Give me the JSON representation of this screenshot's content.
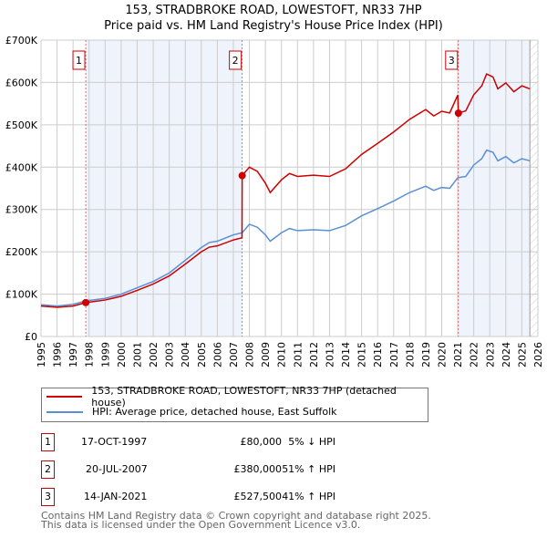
{
  "chart_data": {
    "type": "line",
    "title": "153, STRADBROKE ROAD, LOWESTOFT, NR33 7HP",
    "subtitle": "Price paid vs. HM Land Registry's House Price Index (HPI)",
    "xlim": [
      1995,
      2026
    ],
    "ylim": [
      0,
      700000
    ],
    "x_ticks": [
      "1995",
      "1996",
      "1997",
      "1998",
      "1999",
      "2000",
      "2001",
      "2002",
      "2003",
      "2004",
      "2005",
      "2006",
      "2007",
      "2008",
      "2009",
      "2010",
      "2011",
      "2012",
      "2013",
      "2014",
      "2015",
      "2016",
      "2017",
      "2018",
      "2019",
      "2020",
      "2021",
      "2022",
      "2023",
      "2024",
      "2025",
      "2026"
    ],
    "y_ticks": [
      {
        "v": 0,
        "label": "£0"
      },
      {
        "v": 100000,
        "label": "£100K"
      },
      {
        "v": 200000,
        "label": "£200K"
      },
      {
        "v": 300000,
        "label": "£300K"
      },
      {
        "v": 400000,
        "label": "£400K"
      },
      {
        "v": 500000,
        "label": "£500K"
      },
      {
        "v": 600000,
        "label": "£600K"
      },
      {
        "v": 700000,
        "label": "£700K"
      }
    ],
    "grid": true,
    "series": [
      {
        "name": "153, STRADBROKE ROAD, LOWESTOFT, NR33 7HP (detached house)",
        "color": "#cc0000",
        "x": [
          1995,
          1996,
          1997,
          1997.8,
          1998,
          1999,
          2000,
          2001,
          2002,
          2003,
          2004,
          2005,
          2005.5,
          2006,
          2007,
          2007.54,
          2007.55,
          2008,
          2008.5,
          2009,
          2009.3,
          2010,
          2010.5,
          2011,
          2012,
          2013,
          2014,
          2015,
          2016,
          2017,
          2018,
          2019,
          2019.5,
          2020,
          2020.5,
          2021,
          2021.04,
          2021.5,
          2022,
          2022.5,
          2022.8,
          2023.2,
          2023.5,
          2024,
          2024.5,
          2025,
          2025.5
        ],
        "y": [
          72000,
          69000,
          72000,
          80000,
          81000,
          86000,
          95000,
          109000,
          124000,
          143000,
          171000,
          200000,
          211000,
          214000,
          228000,
          233000,
          380000,
          400000,
          390000,
          362000,
          340000,
          370000,
          385000,
          378000,
          381000,
          378000,
          396000,
          430000,
          456000,
          483000,
          513000,
          536000,
          521000,
          532000,
          528000,
          570000,
          527500,
          533000,
          571000,
          592000,
          620000,
          613000,
          585000,
          599000,
          578000,
          592000,
          585000
        ]
      },
      {
        "name": "HPI: Average price, detached house, East Suffolk",
        "color": "#5b8fd4",
        "x": [
          1995,
          1996,
          1997,
          1997.8,
          1998,
          1999,
          2000,
          2001,
          2002,
          2003,
          2004,
          2005,
          2005.5,
          2006,
          2007,
          2007.55,
          2008,
          2008.5,
          2009,
          2009.3,
          2010,
          2010.5,
          2011,
          2012,
          2013,
          2014,
          2015,
          2016,
          2017,
          2018,
          2019,
          2019.5,
          2020,
          2020.5,
          2021,
          2021.5,
          2022,
          2022.5,
          2022.8,
          2023.2,
          2023.5,
          2024,
          2024.5,
          2025,
          2025.5
        ],
        "y": [
          75000,
          72000,
          76000,
          84000,
          85000,
          90000,
          100000,
          115000,
          130000,
          150000,
          180000,
          210000,
          222000,
          225000,
          240000,
          245000,
          265000,
          258000,
          240000,
          225000,
          245000,
          255000,
          250000,
          252000,
          250000,
          262000,
          285000,
          302000,
          320000,
          340000,
          355000,
          345000,
          352000,
          350000,
          375000,
          378000,
          405000,
          420000,
          440000,
          435000,
          415000,
          425000,
          410000,
          420000,
          415000
        ]
      }
    ],
    "sales": [
      {
        "n": "1",
        "x": 1997.79,
        "price": 80000,
        "date": "17-OCT-1997",
        "price_label": "£80,000",
        "hpi": "5% ↓ HPI"
      },
      {
        "n": "2",
        "x": 2007.55,
        "price": 380000,
        "date": "20-JUL-2007",
        "price_label": "£380,000",
        "hpi": "51% ↑ HPI"
      },
      {
        "n": "3",
        "x": 2021.04,
        "price": 527500,
        "date": "14-JAN-2021",
        "price_label": "£527,500",
        "hpi": "41% ↑ HPI"
      }
    ],
    "legend": "below"
  },
  "footer": {
    "line1": "Contains HM Land Registry data © Crown copyright and database right 2025.",
    "line2": "This data is licensed under the Open Government Licence v3.0."
  }
}
